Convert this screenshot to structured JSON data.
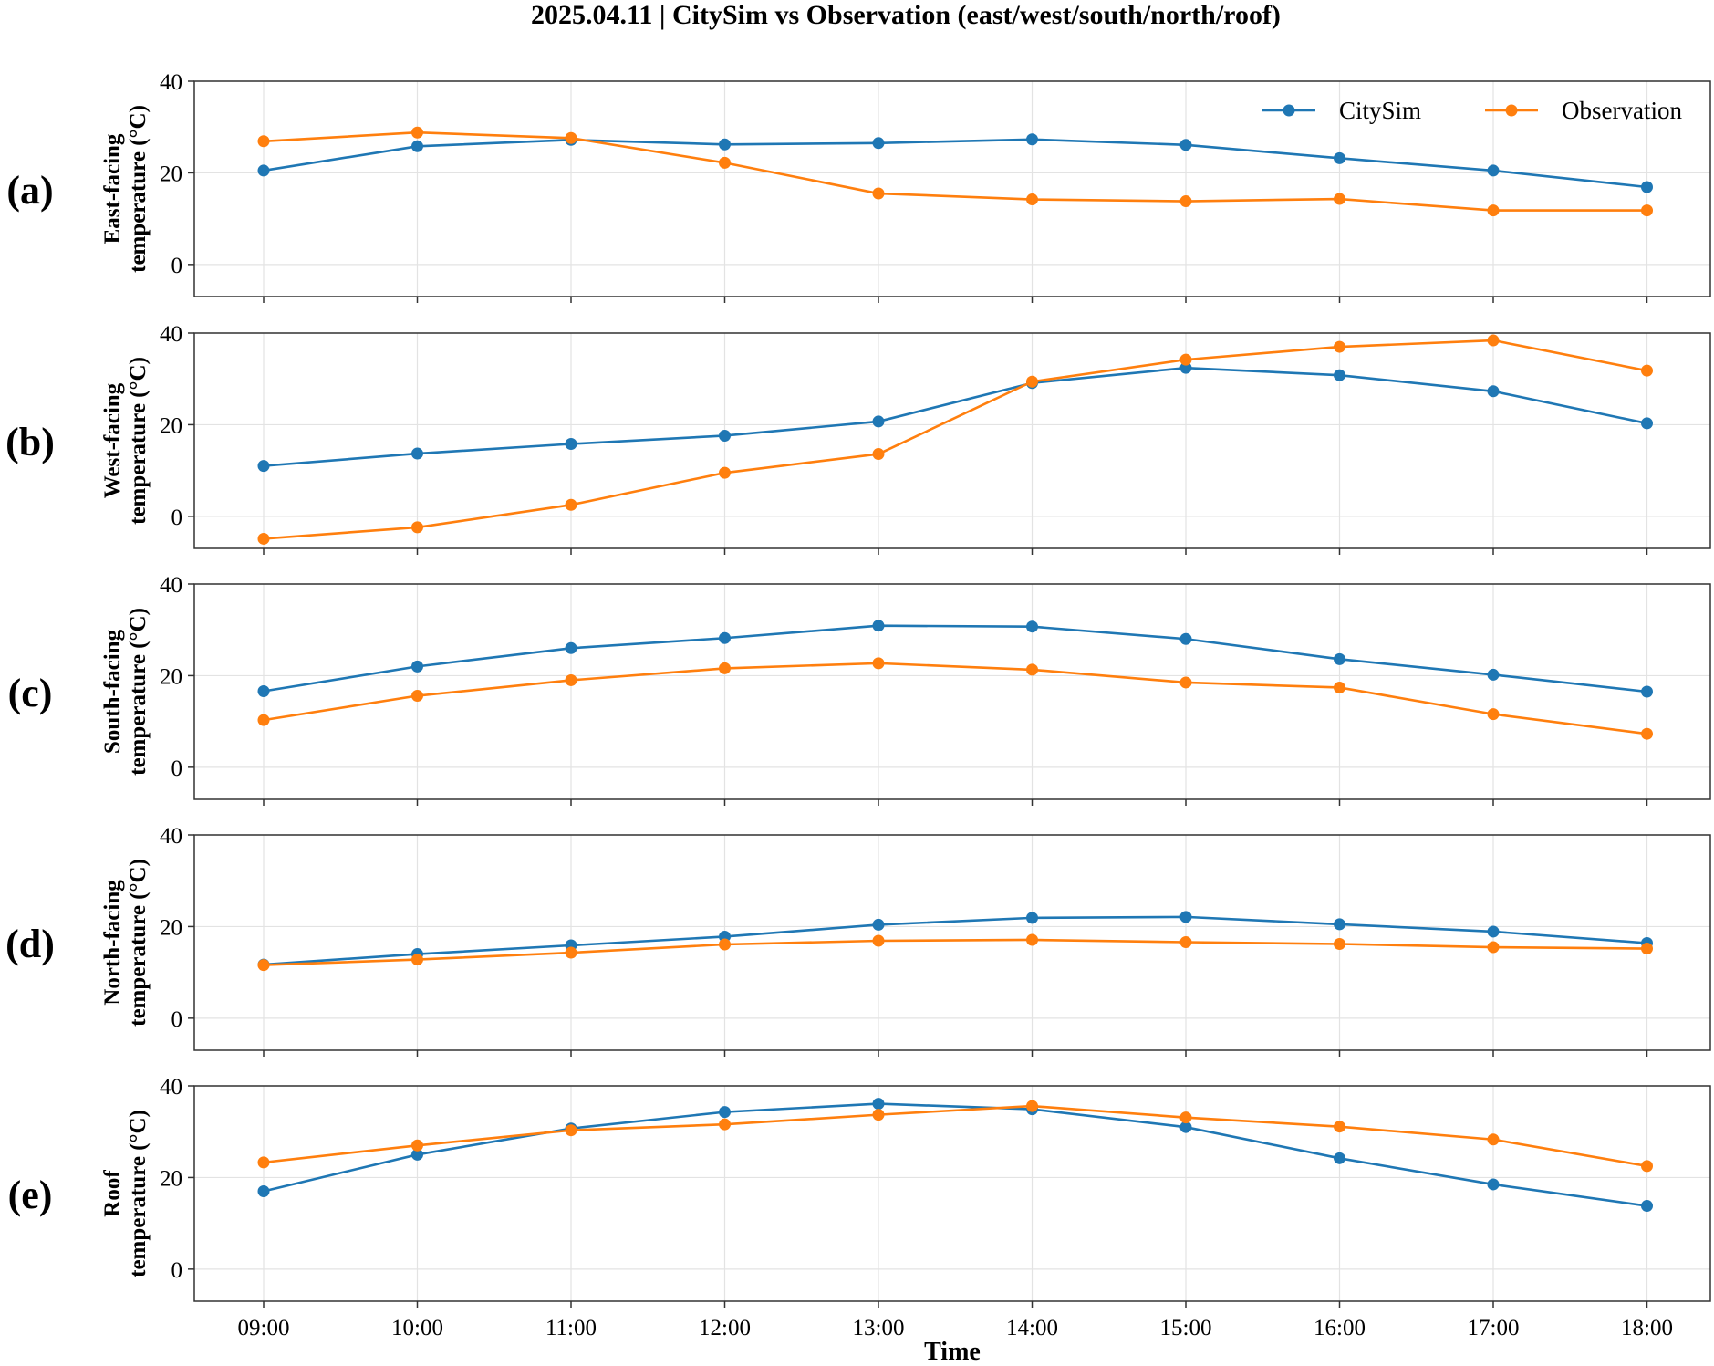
{
  "chart_data": {
    "type": "line",
    "title": "2025.04.11 | CitySim vs Observation (east/west/south/north/roof)",
    "xlabel": "Time",
    "categories": [
      "09:00",
      "10:00",
      "11:00",
      "12:00",
      "13:00",
      "14:00",
      "15:00",
      "16:00",
      "17:00",
      "18:00"
    ],
    "ylim": [
      -7,
      40
    ],
    "yticks": [
      0,
      20,
      40
    ],
    "grid": true,
    "legend": {
      "placement": "top-right of panel (a)",
      "entries": [
        "CitySim",
        "Observation"
      ]
    },
    "colors": {
      "CitySim": "#1f77b4",
      "Observation": "#ff7f0e"
    },
    "panels": [
      {
        "letter": "(a)",
        "ylabel_line1": "East-facing",
        "ylabel_line2": "temperature (°C)",
        "series": [
          {
            "name": "CitySim",
            "values": [
              20.5,
              25.8,
              27.2,
              26.2,
              26.5,
              27.3,
              26.1,
              23.2,
              20.5,
              16.9
            ]
          },
          {
            "name": "Observation",
            "values": [
              26.9,
              28.8,
              27.6,
              22.2,
              15.5,
              14.2,
              13.8,
              14.3,
              11.8,
              11.8
            ]
          }
        ]
      },
      {
        "letter": "(b)",
        "ylabel_line1": "West-facing",
        "ylabel_line2": "temperature (°C)",
        "series": [
          {
            "name": "CitySim",
            "values": [
              11.0,
              13.7,
              15.8,
              17.6,
              20.7,
              29.1,
              32.4,
              30.8,
              27.3,
              20.3
            ]
          },
          {
            "name": "Observation",
            "values": [
              -4.9,
              -2.4,
              2.5,
              9.5,
              13.6,
              29.4,
              34.2,
              37.0,
              38.4,
              31.8
            ]
          }
        ]
      },
      {
        "letter": "(c)",
        "ylabel_line1": "South-facing",
        "ylabel_line2": "temperature (°C)",
        "series": [
          {
            "name": "CitySim",
            "values": [
              16.6,
              22.0,
              26.0,
              28.2,
              30.9,
              30.7,
              28.0,
              23.6,
              20.2,
              16.5
            ]
          },
          {
            "name": "Observation",
            "values": [
              10.3,
              15.6,
              19.0,
              21.6,
              22.7,
              21.3,
              18.5,
              17.4,
              11.6,
              7.3
            ]
          }
        ]
      },
      {
        "letter": "(d)",
        "ylabel_line1": "North-facing",
        "ylabel_line2": "temperature (°C)",
        "series": [
          {
            "name": "CitySim",
            "values": [
              11.7,
              14.0,
              15.9,
              17.8,
              20.4,
              21.9,
              22.1,
              20.5,
              18.9,
              16.4
            ]
          },
          {
            "name": "Observation",
            "values": [
              11.6,
              12.8,
              14.3,
              16.1,
              16.9,
              17.1,
              16.6,
              16.2,
              15.5,
              15.2
            ]
          }
        ]
      },
      {
        "letter": "(e)",
        "ylabel_line1": "Roof",
        "ylabel_line2": "temperature (°C)",
        "series": [
          {
            "name": "CitySim",
            "values": [
              17.0,
              25.0,
              30.7,
              34.3,
              36.1,
              34.9,
              31.0,
              24.2,
              18.5,
              13.8
            ]
          },
          {
            "name": "Observation",
            "values": [
              23.3,
              27.0,
              30.3,
              31.6,
              33.7,
              35.6,
              33.1,
              31.1,
              28.3,
              22.5
            ]
          }
        ]
      }
    ]
  }
}
